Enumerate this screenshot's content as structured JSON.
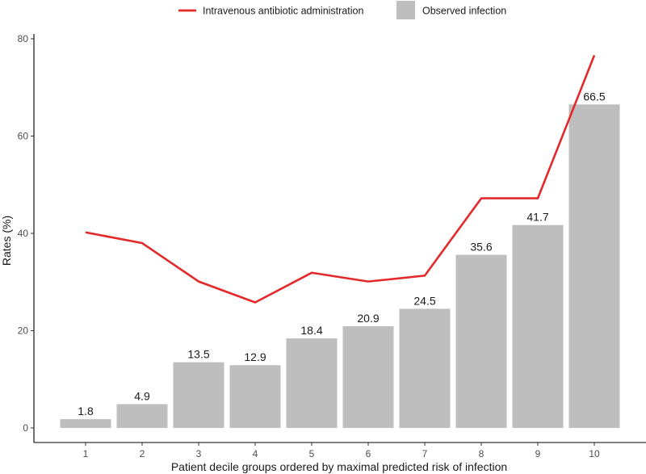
{
  "chart_data": {
    "type": "bar",
    "categories": [
      "1",
      "2",
      "3",
      "4",
      "5",
      "6",
      "7",
      "8",
      "9",
      "10"
    ],
    "series": [
      {
        "name": "Observed infection",
        "type": "bar",
        "values": [
          1.8,
          4.9,
          13.5,
          12.9,
          18.4,
          20.9,
          24.5,
          35.6,
          41.7,
          66.5
        ],
        "color": "#bebebe"
      },
      {
        "name": "Intravenous antibiotic administration",
        "type": "line",
        "values": [
          40.2,
          38.0,
          30.1,
          25.8,
          31.9,
          30.1,
          31.3,
          47.2,
          47.2,
          76.6
        ],
        "color": "#e3292a"
      }
    ],
    "data_labels": [
      "1.8",
      "4.9",
      "13.5",
      "12.9",
      "18.4",
      "20.9",
      "24.5",
      "35.6",
      "41.7",
      "66.5"
    ],
    "xlabel": "Patient decile groups ordered by maximal predicted risk of infection",
    "ylabel": "Rates (%)",
    "ylim": [
      -3,
      81
    ],
    "yticks": [
      0,
      20,
      40,
      60,
      80
    ],
    "grid": false,
    "legend_position": "top"
  }
}
